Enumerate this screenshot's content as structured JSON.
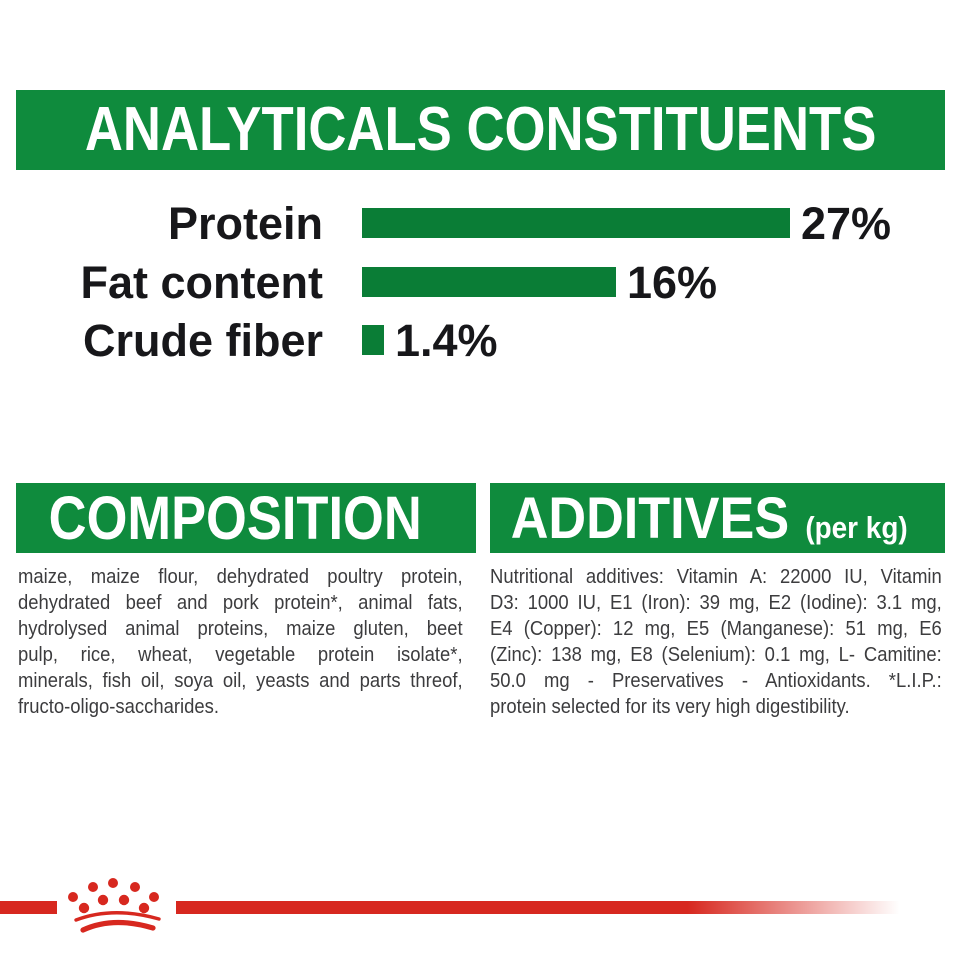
{
  "header": {
    "title": "ANALYTICALS CONSTITUENTS"
  },
  "chart_data": {
    "type": "bar",
    "orientation": "horizontal",
    "title": "ANALYTICALS CONSTITUENTS",
    "categories": [
      "Protein",
      "Fat content",
      "Crude fiber"
    ],
    "values": [
      27,
      16,
      1.4
    ],
    "value_labels": [
      "27%",
      "16%",
      "1.4%"
    ],
    "unit": "%",
    "xlim": [
      0,
      27
    ],
    "grid": false,
    "bar_color": "#0A7D36"
  },
  "composition": {
    "title": "COMPOSITION",
    "lines": [
      "maize, maize flour, dehydrated poultry protein,",
      "dehydrated beef and pork protein*, animal fats,",
      "hydrolysed animal proteins, maize gluten, beet",
      "pulp, rice, wheat, vegetable protein isolate*,",
      "minerals, fish oil, soya oil, yeasts and parts threof,",
      "fructo-oligo-saccharides."
    ]
  },
  "additives": {
    "title": "ADDITIVES",
    "subtitle": "(per kg)",
    "lines": [
      "Nutritional additives: Vitamin A: 22000 IU, Vitamin",
      "D3: 1000 IU, E1 (Iron): 39 mg, E2 (Iodine): 3.1 mg,",
      "E4 (Copper): 12 mg, E5 (Manganese): 51 mg, E6",
      "(Zinc): 138 mg, E8 (Selenium): 0.1 mg, L- Camitine:",
      "50.0 mg - Preservatives - Antioxidants. *L.I.P.:",
      "protein selected for its very high digestibility."
    ]
  },
  "footer": {
    "logo": "royal-canin-crown-logo"
  },
  "colors": {
    "green_banner": "#0F8B3D",
    "green_bar": "#0A7D36",
    "red": "#D7281F",
    "text_dark": "#17171A",
    "text_body": "#3C3C3E"
  }
}
